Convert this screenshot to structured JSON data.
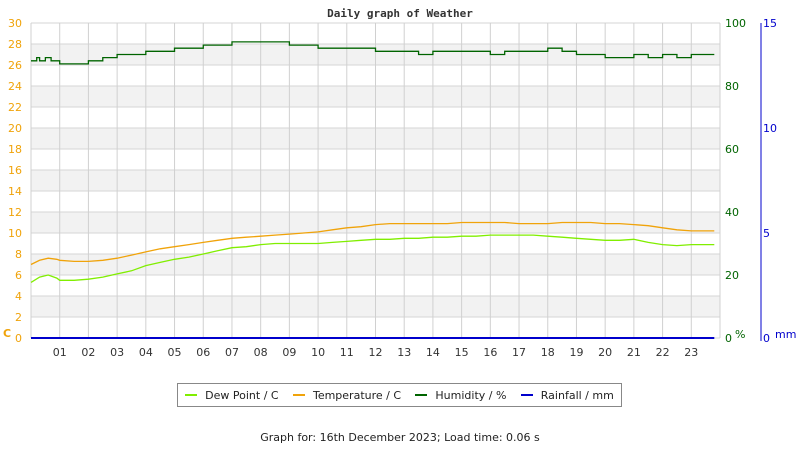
{
  "chart_data": {
    "type": "line",
    "title": "Daily graph of Weather",
    "xlabel": "",
    "x_ticks": [
      "01",
      "02",
      "03",
      "04",
      "05",
      "06",
      "07",
      "08",
      "09",
      "10",
      "11",
      "12",
      "13",
      "14",
      "15",
      "16",
      "17",
      "18",
      "19",
      "20",
      "21",
      "22",
      "23"
    ],
    "axes": {
      "left": {
        "label": "C",
        "ticks": [
          0,
          2,
          4,
          6,
          8,
          10,
          12,
          14,
          16,
          18,
          20,
          22,
          24,
          26,
          28,
          30
        ],
        "range": [
          0,
          30
        ],
        "color": "#f0a30a"
      },
      "right1": {
        "label": "%",
        "ticks": [
          0,
          20,
          40,
          60,
          80,
          100
        ],
        "range": [
          0,
          100
        ],
        "color": "#006400"
      },
      "right2": {
        "label": "mm",
        "ticks": [
          0,
          5,
          10,
          15
        ],
        "range": [
          0,
          15
        ],
        "color": "#0000cc"
      }
    },
    "grid": true,
    "legend_position": "bottom",
    "series": [
      {
        "name": "Dew Point / C",
        "color": "#80ee00",
        "axis": "left",
        "x": [
          0,
          0.3,
          0.6,
          0.9,
          1,
          1.5,
          2,
          2.5,
          3,
          3.5,
          4,
          4.5,
          5,
          5.5,
          6,
          6.5,
          7,
          7.5,
          8,
          8.5,
          9,
          9.5,
          10,
          10.5,
          11,
          11.5,
          12,
          12.5,
          13,
          13.5,
          14,
          14.5,
          15,
          15.5,
          16,
          16.5,
          17,
          17.5,
          18,
          18.5,
          19,
          19.5,
          20,
          20.5,
          21,
          21.5,
          22,
          22.5,
          23,
          23.8
        ],
        "values": [
          5.3,
          5.8,
          6.0,
          5.7,
          5.5,
          5.5,
          5.6,
          5.8,
          6.1,
          6.4,
          6.9,
          7.2,
          7.5,
          7.7,
          8.0,
          8.3,
          8.6,
          8.7,
          8.9,
          9.0,
          9.0,
          9.0,
          9.0,
          9.1,
          9.2,
          9.3,
          9.4,
          9.4,
          9.5,
          9.5,
          9.6,
          9.6,
          9.7,
          9.7,
          9.8,
          9.8,
          9.8,
          9.8,
          9.7,
          9.6,
          9.5,
          9.4,
          9.3,
          9.3,
          9.4,
          9.1,
          8.9,
          8.8,
          8.9,
          8.9
        ]
      },
      {
        "name": "Temperature / C",
        "color": "#f0a30a",
        "axis": "left",
        "x": [
          0,
          0.3,
          0.6,
          0.9,
          1,
          1.5,
          2,
          2.5,
          3,
          3.5,
          4,
          4.5,
          5,
          5.5,
          6,
          6.5,
          7,
          7.5,
          8,
          8.5,
          9,
          9.5,
          10,
          10.5,
          11,
          11.5,
          12,
          12.5,
          13,
          13.5,
          14,
          14.5,
          15,
          15.5,
          16,
          16.5,
          17,
          17.5,
          18,
          18.5,
          19,
          19.5,
          20,
          20.5,
          21,
          21.5,
          22,
          22.5,
          23,
          23.8
        ],
        "values": [
          7.0,
          7.4,
          7.6,
          7.5,
          7.4,
          7.3,
          7.3,
          7.4,
          7.6,
          7.9,
          8.2,
          8.5,
          8.7,
          8.9,
          9.1,
          9.3,
          9.5,
          9.6,
          9.7,
          9.8,
          9.9,
          10.0,
          10.1,
          10.3,
          10.5,
          10.6,
          10.8,
          10.9,
          10.9,
          10.9,
          10.9,
          10.9,
          11.0,
          11.0,
          11.0,
          11.0,
          10.9,
          10.9,
          10.9,
          11.0,
          11.0,
          11.0,
          10.9,
          10.9,
          10.8,
          10.7,
          10.5,
          10.3,
          10.2,
          10.2
        ]
      },
      {
        "name": "Humidity / %",
        "color": "#006400",
        "axis": "right1",
        "x": [
          0,
          0.2,
          0.3,
          0.5,
          0.7,
          1,
          1.5,
          2,
          2.5,
          3,
          3.5,
          4,
          4.5,
          5,
          5.5,
          6,
          6.5,
          7,
          7.5,
          8,
          8.5,
          9,
          9.5,
          10,
          10.5,
          11,
          11.5,
          12,
          12.5,
          13,
          13.5,
          14,
          14.5,
          15,
          15.5,
          16,
          16.5,
          17,
          17.5,
          18,
          18.5,
          19,
          19.5,
          20,
          20.5,
          21,
          21.5,
          22,
          22.5,
          23,
          23.8
        ],
        "values": [
          88,
          89,
          88,
          89,
          88,
          87,
          87,
          88,
          89,
          90,
          90,
          91,
          91,
          92,
          92,
          93,
          93,
          94,
          94,
          94,
          94,
          93,
          93,
          92,
          92,
          92,
          92,
          91,
          91,
          91,
          90,
          91,
          91,
          91,
          91,
          90,
          91,
          91,
          91,
          92,
          91,
          90,
          90,
          89,
          89,
          90,
          89,
          90,
          89,
          90,
          90
        ]
      },
      {
        "name": "Rainfall / mm",
        "color": "#0000cc",
        "axis": "right2",
        "x": [
          0,
          23.8
        ],
        "values": [
          0,
          0
        ]
      }
    ]
  },
  "legend": [
    {
      "label": "Dew Point / C",
      "color": "#80ee00"
    },
    {
      "label": "Temperature / C",
      "color": "#f0a30a"
    },
    {
      "label": "Humidity / %",
      "color": "#006400"
    },
    {
      "label": "Rainfall / mm",
      "color": "#0000cc"
    }
  ],
  "footer": "Graph for: 16th December 2023; Load time: 0.06 s"
}
